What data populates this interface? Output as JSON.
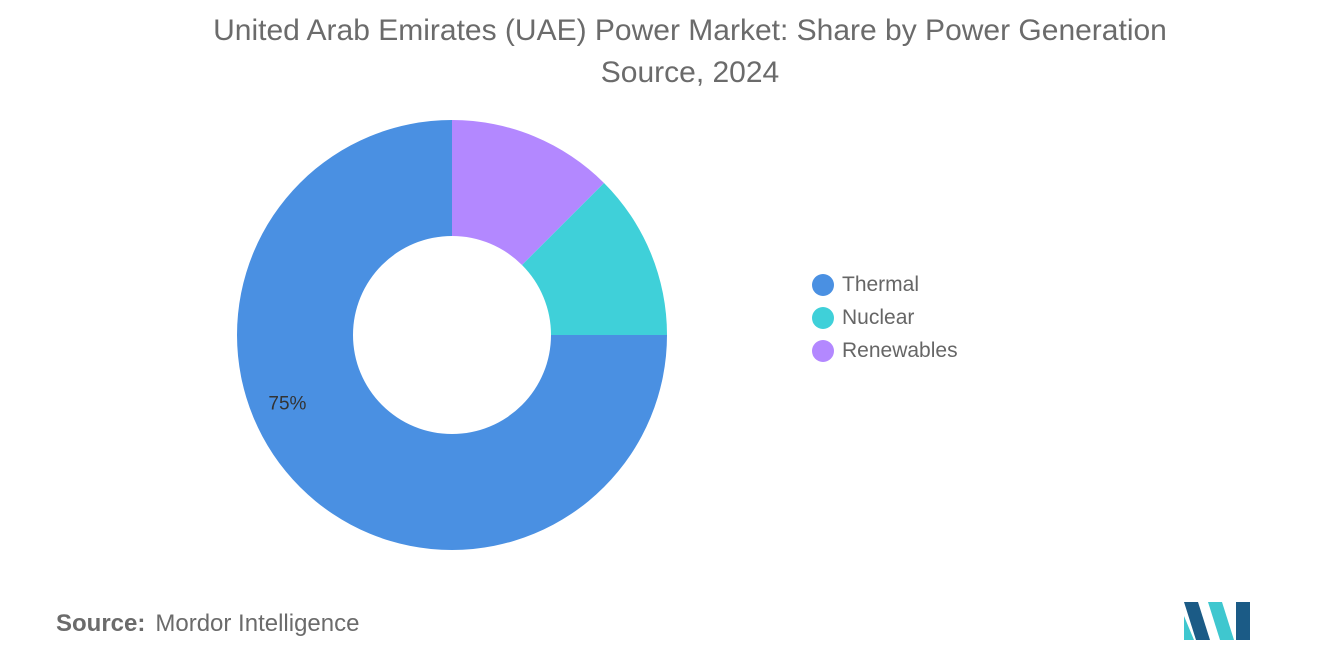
{
  "chart_data": {
    "type": "pie",
    "title": "United Arab Emirates (UAE) Power Market: Share by Power Generation Source, 2024",
    "donut": true,
    "legend_position": "right",
    "series": [
      {
        "name": "Thermal",
        "value": 75,
        "color": "#4a90e2",
        "label": "75%"
      },
      {
        "name": "Nuclear",
        "value": 12.5,
        "color": "#3fd0d9",
        "label": ""
      },
      {
        "name": "Renewables",
        "value": 12.5,
        "color": "#b388ff",
        "label": ""
      }
    ]
  },
  "footer": {
    "source_key": "Source:",
    "source_value": "Mordor Intelligence"
  },
  "logo": {
    "colors": [
      "#1b5b86",
      "#3fc7cf"
    ]
  }
}
